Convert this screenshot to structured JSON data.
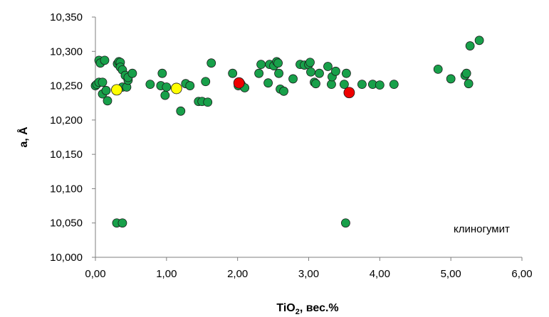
{
  "chart_data": {
    "type": "scatter",
    "xlabel": "TiO",
    "xlabel_sub": "2",
    "xlabel_suffix": ", вес.%",
    "ylabel": "a, Å",
    "xlim": [
      0,
      6
    ],
    "ylim": [
      10.0,
      10.35
    ],
    "x_ticks": [
      0,
      1,
      2,
      3,
      4,
      5,
      6
    ],
    "x_tick_labels": [
      "0,00",
      "1,00",
      "2,00",
      "3,00",
      "4,00",
      "5,00",
      "6,00"
    ],
    "y_ticks": [
      10.0,
      10.05,
      10.1,
      10.15,
      10.2,
      10.25,
      10.3,
      10.35
    ],
    "y_tick_labels": [
      "10,000",
      "10,050",
      "10,100",
      "10,150",
      "10,200",
      "10,250",
      "10,300",
      "10,350"
    ],
    "grid": false,
    "annotation": "клиногумит",
    "series": [
      {
        "color": "#18a04a",
        "points": [
          [
            0.0,
            10.25
          ],
          [
            0.02,
            10.252
          ],
          [
            0.05,
            10.255
          ],
          [
            0.05,
            10.287
          ],
          [
            0.07,
            10.283
          ],
          [
            0.1,
            10.255
          ],
          [
            0.1,
            10.238
          ],
          [
            0.13,
            10.287
          ],
          [
            0.15,
            10.243
          ],
          [
            0.17,
            10.228
          ],
          [
            0.3,
            10.05
          ],
          [
            0.31,
            10.282
          ],
          [
            0.33,
            10.285
          ],
          [
            0.35,
            10.284
          ],
          [
            0.35,
            10.277
          ],
          [
            0.38,
            10.05
          ],
          [
            0.38,
            10.273
          ],
          [
            0.38,
            10.248
          ],
          [
            0.42,
            10.265
          ],
          [
            0.44,
            10.248
          ],
          [
            0.46,
            10.258
          ],
          [
            0.46,
            10.262
          ],
          [
            0.52,
            10.268
          ],
          [
            0.77,
            10.252
          ],
          [
            0.92,
            10.25
          ],
          [
            0.94,
            10.268
          ],
          [
            0.98,
            10.236
          ],
          [
            1.0,
            10.248
          ],
          [
            1.2,
            10.213
          ],
          [
            1.27,
            10.253
          ],
          [
            1.33,
            10.25
          ],
          [
            1.45,
            10.227
          ],
          [
            1.5,
            10.227
          ],
          [
            1.55,
            10.256
          ],
          [
            1.58,
            10.226
          ],
          [
            1.63,
            10.283
          ],
          [
            1.93,
            10.268
          ],
          [
            2.01,
            10.25
          ],
          [
            2.05,
            10.252
          ],
          [
            2.1,
            10.247
          ],
          [
            2.3,
            10.268
          ],
          [
            2.33,
            10.281
          ],
          [
            2.43,
            10.254
          ],
          [
            2.45,
            10.281
          ],
          [
            2.51,
            10.279
          ],
          [
            2.55,
            10.285
          ],
          [
            2.57,
            10.283
          ],
          [
            2.58,
            10.268
          ],
          [
            2.6,
            10.245
          ],
          [
            2.65,
            10.242
          ],
          [
            2.78,
            10.26
          ],
          [
            2.88,
            10.281
          ],
          [
            2.94,
            10.28
          ],
          [
            3.0,
            10.281
          ],
          [
            3.02,
            10.284
          ],
          [
            3.03,
            10.27
          ],
          [
            3.08,
            10.255
          ],
          [
            3.1,
            10.253
          ],
          [
            3.15,
            10.268
          ],
          [
            3.27,
            10.278
          ],
          [
            3.32,
            10.252
          ],
          [
            3.33,
            10.263
          ],
          [
            3.38,
            10.271
          ],
          [
            3.5,
            10.252
          ],
          [
            3.52,
            10.05
          ],
          [
            3.53,
            10.268
          ],
          [
            3.75,
            10.252
          ],
          [
            3.9,
            10.252
          ],
          [
            4.0,
            10.251
          ],
          [
            4.2,
            10.252
          ],
          [
            4.82,
            10.274
          ],
          [
            5.0,
            10.26
          ],
          [
            5.2,
            10.265
          ],
          [
            5.22,
            10.268
          ],
          [
            5.25,
            10.253
          ],
          [
            5.27,
            10.308
          ],
          [
            5.4,
            10.316
          ]
        ]
      },
      {
        "color": "#ffff00",
        "points": [
          [
            0.3,
            10.244
          ],
          [
            1.14,
            10.246
          ]
        ]
      },
      {
        "color": "#ee0000",
        "points": [
          [
            2.02,
            10.254
          ],
          [
            3.57,
            10.24
          ]
        ]
      }
    ]
  }
}
